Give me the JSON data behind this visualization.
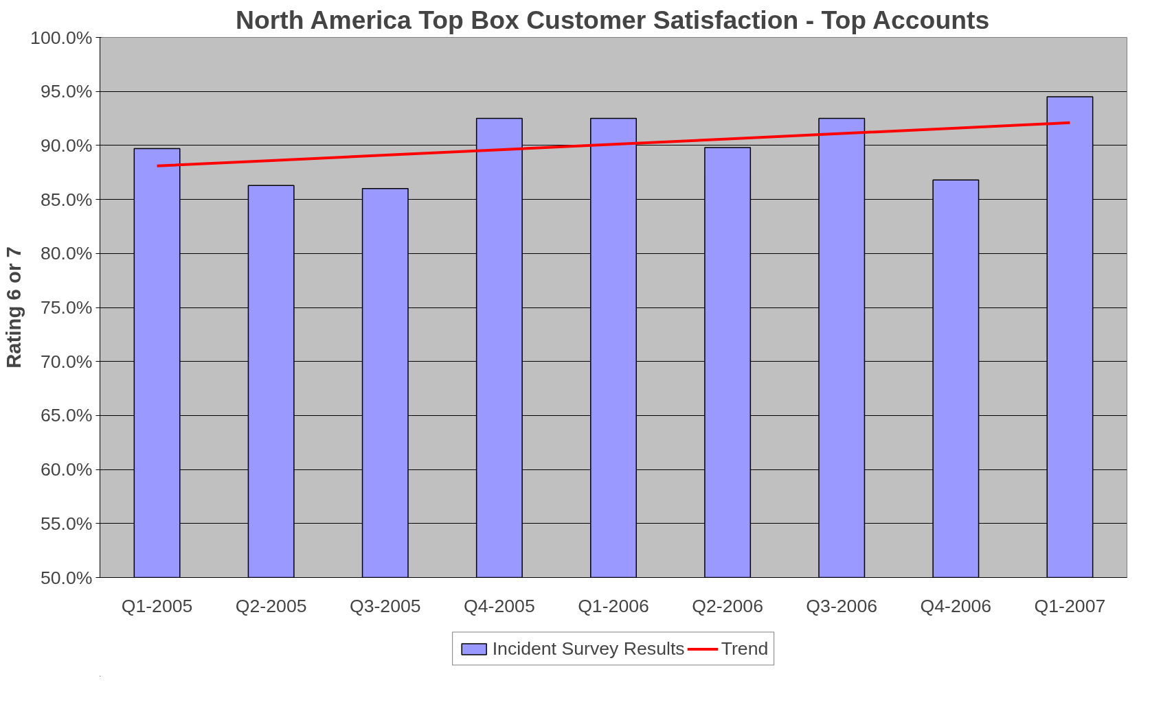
{
  "chart_data": {
    "type": "bar",
    "title": "North America Top Box Customer Satisfaction - Top Accounts",
    "ylabel": "Rating 6 or 7",
    "categories": [
      "Q1-2005",
      "Q2-2005",
      "Q3-2005",
      "Q4-2005",
      "Q1-2006",
      "Q2-2006",
      "Q3-2006",
      "Q4-2006",
      "Q1-2007"
    ],
    "series": [
      {
        "name": "Incident Survey Results",
        "color": "#9999ff",
        "values": [
          89.7,
          86.3,
          86.0,
          92.5,
          92.5,
          89.8,
          92.5,
          86.8,
          94.5
        ]
      },
      {
        "name": "Trend",
        "type": "line",
        "color": "#ff0000",
        "values": [
          88.1,
          88.6,
          89.1,
          89.6,
          90.1,
          90.6,
          91.1,
          91.6,
          92.1
        ]
      }
    ],
    "ylim": [
      50,
      100
    ],
    "yticks": [
      {
        "value": 50,
        "label": "50.0%"
      },
      {
        "value": 55,
        "label": "55.0%"
      },
      {
        "value": 60,
        "label": "60.0%"
      },
      {
        "value": 65,
        "label": "65.0%"
      },
      {
        "value": 70,
        "label": "70.0%"
      },
      {
        "value": 75,
        "label": "75.0%"
      },
      {
        "value": 80,
        "label": "80.0%"
      },
      {
        "value": 85,
        "label": "85.0%"
      },
      {
        "value": 90,
        "label": "90.0%"
      },
      {
        "value": 95,
        "label": "95.0%"
      },
      {
        "value": 100,
        "label": "100.0%"
      }
    ],
    "grid": "y",
    "legend": "bottom"
  }
}
